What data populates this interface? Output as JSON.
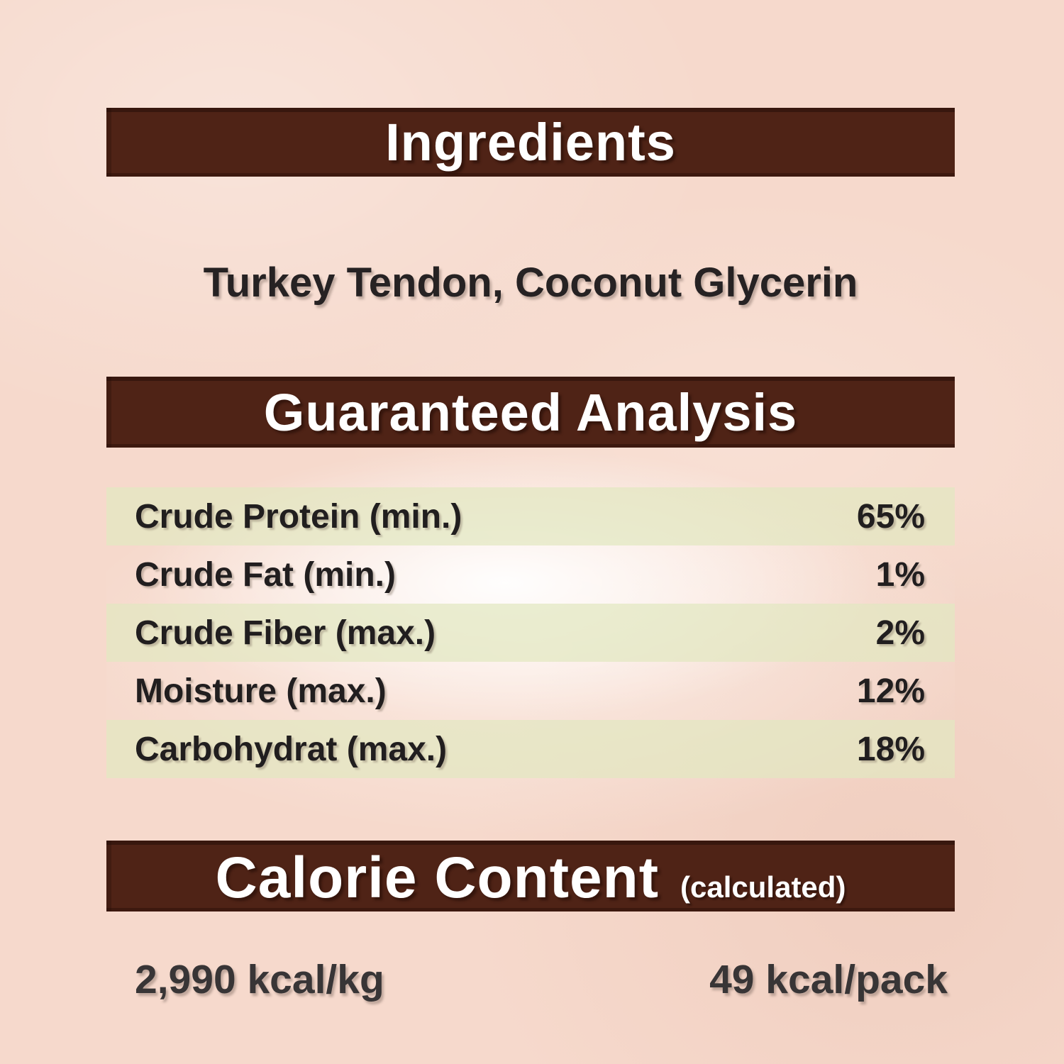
{
  "page": {
    "background_color": "#f6d9cc",
    "bar_color": "#4f2316",
    "stripe_color": "#e2e7c0",
    "text_color": "#211e1f"
  },
  "sections": {
    "ingredients": {
      "title": "Ingredients",
      "content": "Turkey Tendon, Coconut Glycerin"
    },
    "guaranteed_analysis": {
      "title": "Guaranteed Analysis",
      "rows": [
        {
          "label": "Crude Protein (min.)",
          "value": "65%"
        },
        {
          "label": "Crude Fat (min.)",
          "value": "1%"
        },
        {
          "label": "Crude Fiber (max.)",
          "value": "2%"
        },
        {
          "label": "Moisture (max.)",
          "value": "12%"
        },
        {
          "label": "Carbohydrat (max.)",
          "value": "18%"
        }
      ]
    },
    "calorie_content": {
      "title": "Calorie Content",
      "subtitle": "(calculated)",
      "per_kg": "2,990 kcal/kg",
      "per_pack": "49 kcal/pack"
    }
  }
}
